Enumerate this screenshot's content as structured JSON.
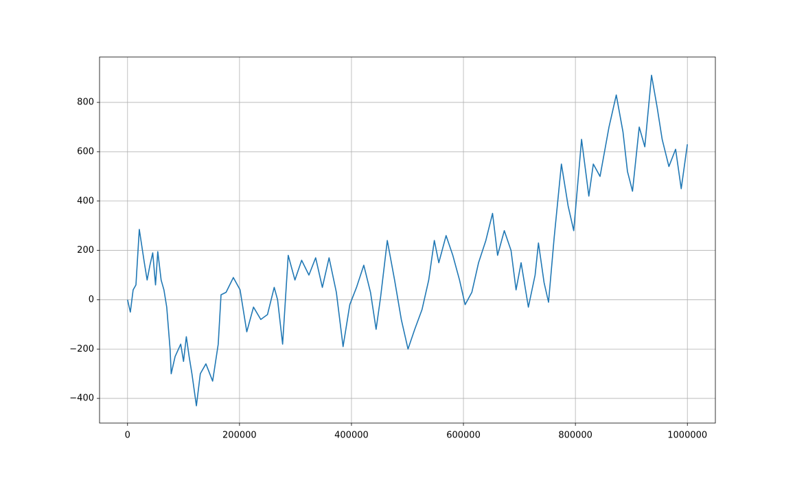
{
  "chart_data": {
    "type": "line",
    "x": [
      0,
      5000,
      10000,
      15000,
      21000,
      30000,
      35000,
      40000,
      45000,
      50000,
      54000,
      60000,
      65000,
      70000,
      76000,
      78000,
      85000,
      95000,
      100000,
      105000,
      110000,
      115000,
      123000,
      130000,
      140000,
      152000,
      162000,
      167000,
      176000,
      189000,
      201000,
      213000,
      225000,
      238000,
      250000,
      262000,
      268000,
      277000,
      287000,
      299000,
      311000,
      324000,
      336000,
      348000,
      360000,
      373000,
      385000,
      397000,
      409000,
      422000,
      434000,
      444000,
      452000,
      464000,
      477000,
      489000,
      501000,
      513000,
      526000,
      538000,
      548000,
      556000,
      569000,
      581000,
      593000,
      603000,
      615000,
      627000,
      640000,
      652000,
      661000,
      673000,
      685000,
      694000,
      703000,
      716000,
      728000,
      734000,
      744000,
      752000,
      762000,
      775000,
      787000,
      797000,
      811000,
      824000,
      832000,
      844000,
      860000,
      873000,
      885000,
      893000,
      902000,
      914000,
      924000,
      936000,
      946000,
      955000,
      967000,
      979000,
      989000,
      1000000
    ],
    "series": [
      {
        "color": "#1f77b4",
        "values": [
          0,
          -50,
          40,
          60,
          285,
          150,
          80,
          140,
          190,
          60,
          195,
          80,
          40,
          -30,
          -200,
          -300,
          -230,
          -180,
          -250,
          -150,
          -230,
          -300,
          -430,
          -300,
          -260,
          -330,
          -180,
          20,
          30,
          90,
          40,
          -130,
          -30,
          -80,
          -60,
          50,
          0,
          -180,
          180,
          80,
          160,
          100,
          170,
          50,
          170,
          30,
          -190,
          -20,
          50,
          140,
          30,
          -120,
          10,
          240,
          80,
          -80,
          -200,
          -120,
          -40,
          80,
          240,
          150,
          260,
          180,
          80,
          -20,
          30,
          150,
          240,
          350,
          180,
          280,
          200,
          40,
          150,
          -30,
          100,
          230,
          70,
          -10,
          250,
          550,
          380,
          280,
          650,
          420,
          550,
          500,
          700,
          830,
          680,
          520,
          440,
          700,
          620,
          910,
          780,
          650,
          540,
          610,
          450,
          630
        ]
      }
    ],
    "xlim": [
      -50000,
      1050000
    ],
    "xticks": [
      0,
      200000,
      400000,
      600000,
      800000,
      1000000
    ],
    "ylim": [
      -500,
      984
    ],
    "yticks": [
      {
        "value": -400,
        "label": "−400"
      },
      {
        "value": -200,
        "label": "−200"
      },
      0,
      200,
      400,
      600,
      800
    ],
    "grid": true
  }
}
